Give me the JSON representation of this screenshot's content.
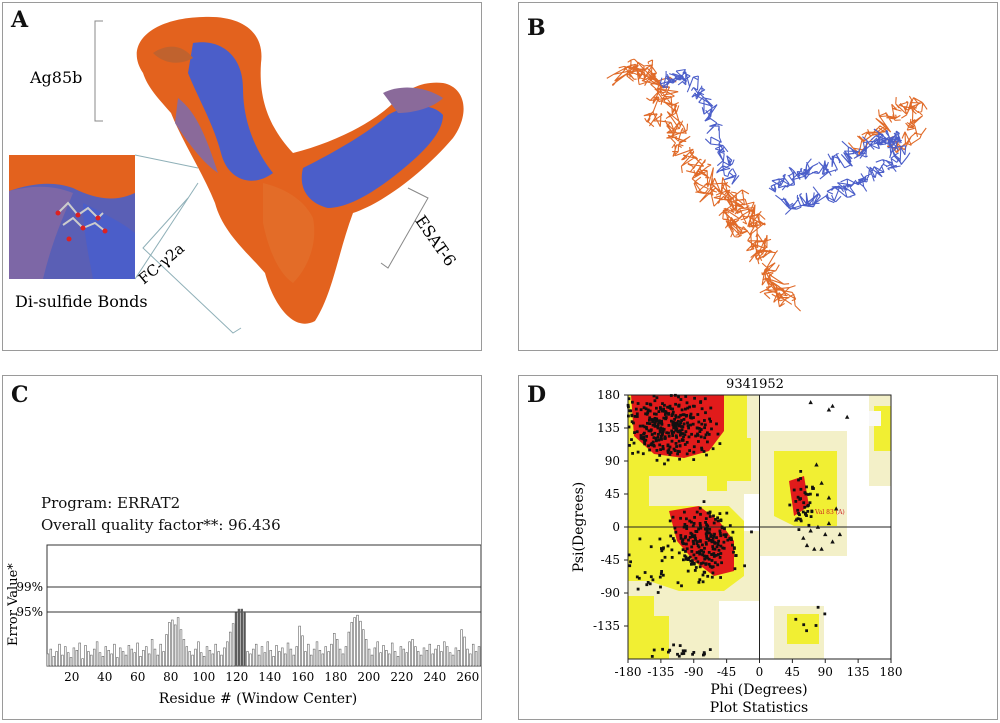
{
  "panel_a": {
    "label": "A",
    "annotations": {
      "ag85b": "Ag85b",
      "esat6": "ESAT-6",
      "fc": "FC-γ2a",
      "disulfide": "Di-sulfide Bonds"
    },
    "colors": {
      "orange": "#e3621e",
      "blue": "#4b5ec9",
      "mauve": "#8a6a9a"
    }
  },
  "panel_b": {
    "label": "B",
    "colors": {
      "orange": "#e06a28",
      "blue": "#4b5ec9"
    }
  },
  "panel_c": {
    "label": "C",
    "program": "Program: ERRAT2",
    "quality": "Overall quality factor**: 96.436",
    "chart_data": {
      "type": "bar",
      "xlabel": "Residue # (Window Center)",
      "ylabel": "Error Value*",
      "x_ticks": [
        "20",
        "40",
        "60",
        "80",
        "100",
        "120",
        "140",
        "160",
        "180",
        "200",
        "220",
        "240",
        "260"
      ],
      "thresholds": [
        "99%",
        "95%"
      ],
      "xlim": [
        5,
        268
      ],
      "values": [
        10,
        14,
        8,
        12,
        18,
        9,
        16,
        11,
        7,
        15,
        13,
        19,
        6,
        17,
        12,
        9,
        14,
        20,
        11,
        8,
        16,
        13,
        10,
        18,
        7,
        15,
        12,
        9,
        17,
        14,
        11,
        19,
        8,
        13,
        16,
        10,
        22,
        14,
        9,
        18,
        12,
        26,
        36,
        38,
        34,
        40,
        30,
        22,
        16,
        12,
        9,
        14,
        20,
        11,
        8,
        16,
        13,
        10,
        18,
        12,
        9,
        15,
        20,
        28,
        35,
        44,
        47,
        47,
        45,
        12,
        10,
        14,
        18,
        9,
        16,
        11,
        20,
        13,
        8,
        17,
        12,
        15,
        10,
        19,
        14,
        9,
        16,
        33,
        25,
        12,
        18,
        9,
        14,
        20,
        13,
        10,
        16,
        12,
        18,
        27,
        22,
        14,
        10,
        16,
        28,
        36,
        40,
        42,
        37,
        30,
        22,
        14,
        9,
        15,
        20,
        11,
        17,
        13,
        10,
        19,
        12,
        8,
        16,
        14,
        11,
        20,
        22,
        16,
        12,
        9,
        15,
        13,
        18,
        10,
        14,
        17,
        12,
        20,
        16,
        11,
        9,
        15,
        13,
        30,
        24,
        14,
        10,
        18,
        12,
        16
      ]
    }
  },
  "panel_d": {
    "label": "D",
    "chart_data": {
      "type": "scatter",
      "title": "9341952",
      "xlabel": "Phi (Degrees)",
      "ylabel": "Psi(Degrees)",
      "footer": "Plot Statistics",
      "xlim": [
        -180,
        180
      ],
      "ylim": [
        -180,
        180
      ],
      "x_ticks": [
        "-180",
        "-135",
        "-90",
        "-45",
        "0",
        "45",
        "90",
        "135",
        "180"
      ],
      "y_ticks": [
        "180",
        "135",
        "90",
        "45",
        "0",
        "-45",
        "-90",
        "-135"
      ],
      "region_label": "Val 83 (A)"
    }
  }
}
